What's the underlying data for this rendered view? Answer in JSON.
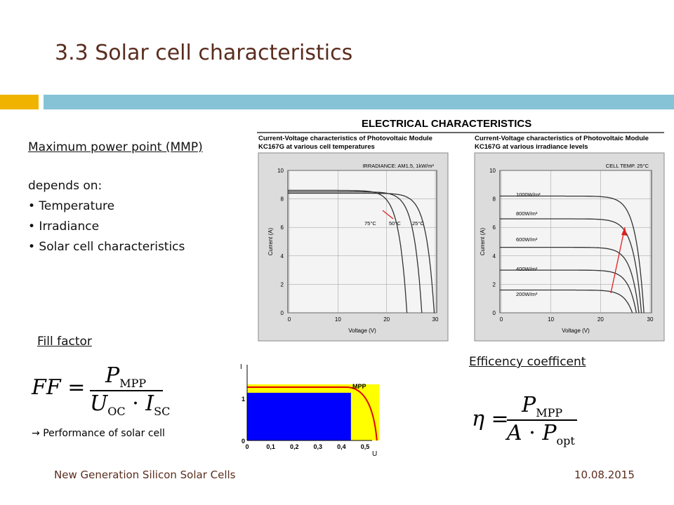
{
  "header": {
    "title": "3.3 Solar cell characteristics"
  },
  "mpp": {
    "heading": "Maximum power point (MMP)",
    "intro": "depends on:",
    "items": [
      "• Temperature",
      "• Irradiance",
      "• Solar cell characteristics"
    ]
  },
  "fill_factor": {
    "heading": "Fill factor",
    "formula": {
      "lhs": "FF",
      "eq": "=",
      "num": "P",
      "num_sub": "MPP",
      "den1": "U",
      "den1_sub": "OC",
      "dot": "·",
      "den2": "I",
      "den2_sub": "SC"
    },
    "arrow": "→",
    "note": "Performance of solar cell"
  },
  "efficiency": {
    "heading": "Efficency coefficent",
    "formula": {
      "lhs": "η",
      "eq": "=",
      "num": "P",
      "num_sub": "MPP",
      "den1": "A",
      "dot": "·",
      "den2": "P",
      "den2_sub": "opt"
    }
  },
  "electrical": {
    "title": "ELECTRICAL CHARACTERISTICS",
    "charts": [
      {
        "title": [
          "Current-Voltage characteristics of Photovoltaic Module",
          "KC167G at various cell temperatures"
        ],
        "condition": "IRRADIANCE: AM1.5, 1kW/m²",
        "ylabel": "Current (A)",
        "xlabel": "Voltage (V)",
        "yticks": [
          "10",
          "8",
          "6",
          "4",
          "2",
          "0"
        ],
        "xticks": [
          "0",
          "10",
          "20",
          "30"
        ],
        "curve_labels": [
          "75°C",
          "50°C",
          "25°C"
        ]
      },
      {
        "title": [
          "Current-Voltage characteristics of Photovoltaic Module",
          "KC167G at various irradiance levels"
        ],
        "condition": "CELL TEMP. 25°C",
        "ylabel": "Current (A)",
        "xlabel": "Voltage (V)",
        "yticks": [
          "10",
          "8",
          "6",
          "4",
          "2",
          "0"
        ],
        "xticks": [
          "0",
          "10",
          "20",
          "30"
        ],
        "curve_labels": [
          "1000W/m²",
          "800W/m²",
          "600W/m²",
          "400W/m²",
          "200W/m²"
        ]
      }
    ]
  },
  "mpp_chart": {
    "ylabel": "I",
    "xlabel": "U",
    "label": "MPP",
    "yticks": [
      "1",
      "0"
    ],
    "xticks": [
      "0",
      "0,1",
      "0,2",
      "0,3",
      "0,4",
      "0,5"
    ]
  },
  "footer": {
    "left": "New Generation Silicon Solar Cells",
    "right": "10.08.2015"
  }
}
